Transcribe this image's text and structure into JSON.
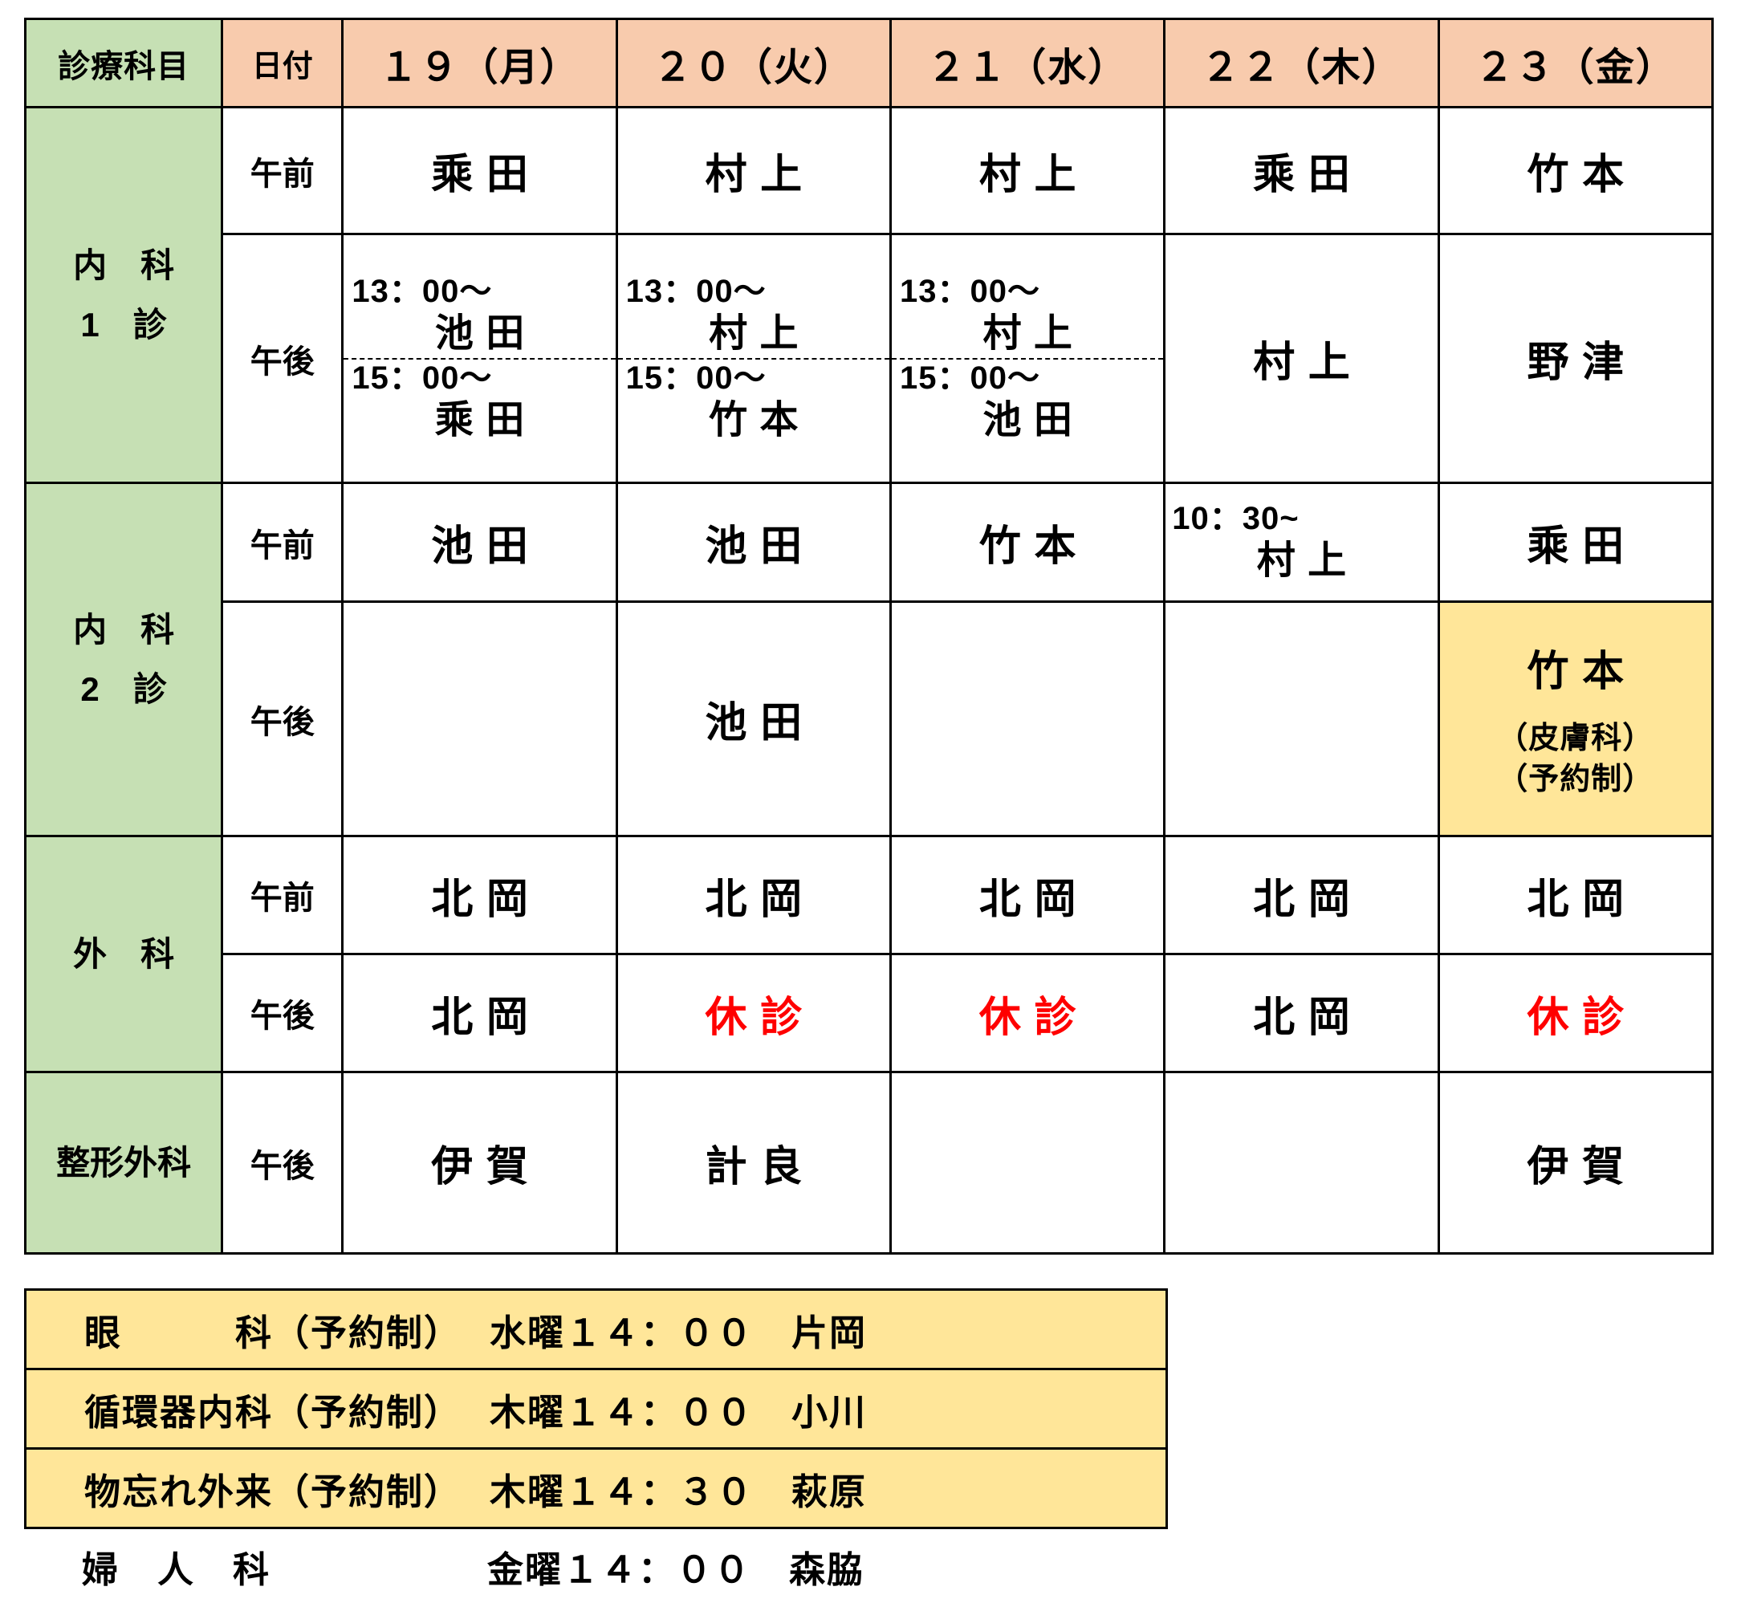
{
  "colors": {
    "green": "#c6e0b4",
    "orange": "#f8cbad",
    "yellow": "#ffe699",
    "red": "#ff0000",
    "border": "#000000"
  },
  "schedule": {
    "header": {
      "dept": "診療科目",
      "date": "日付",
      "days": [
        "１９（月）",
        "２０（火）",
        "２１（水）",
        "２２（木）",
        "２３（金）"
      ]
    },
    "naika1": {
      "label1": "内　科",
      "label2": "1　診",
      "am_label": "午前",
      "pm_label": "午後",
      "am": [
        "乘田",
        "村上",
        "村上",
        "乘田",
        "竹本"
      ],
      "pm_split": [
        {
          "t1": "13：00～",
          "n1": "池田",
          "t2": "15：00～",
          "n2": "乘田"
        },
        {
          "t1": "13：00～",
          "n1": "村上",
          "t2": "15：00～",
          "n2": "竹本"
        },
        {
          "t1": "13：00～",
          "n1": "村上",
          "t2": "15：00～",
          "n2": "池田"
        }
      ],
      "pm_thu": "村上",
      "pm_fri": "野津"
    },
    "naika2": {
      "label1": "内　科",
      "label2": "2　診",
      "am_label": "午前",
      "pm_label": "午後",
      "am": [
        "池田",
        "池田",
        "竹本"
      ],
      "am_thu": {
        "time": "10：30~",
        "name": "村上"
      },
      "am_fri": "乘田",
      "pm_tue": "池田",
      "pm_fri": {
        "name": "竹本",
        "sub1": "（皮膚科）",
        "sub2": "（予約制）"
      }
    },
    "geka": {
      "label": "外　科",
      "am_label": "午前",
      "pm_label": "午後",
      "am": [
        "北岡",
        "北岡",
        "北岡",
        "北岡",
        "北岡"
      ],
      "pm": [
        "北岡",
        "休診",
        "休診",
        "北岡",
        "休診"
      ]
    },
    "seikei": {
      "label": "整形外科",
      "pm_label": "午後",
      "pm_mon": "伊賀",
      "pm_tue": "計良",
      "pm_fri": "伊賀"
    }
  },
  "notes": {
    "rows": [
      {
        "dept": "眼　　　科（予約制）",
        "sched": "水曜１４：００　片岡"
      },
      {
        "dept": "循環器内科（予約制）",
        "sched": "木曜１４：００　小川"
      },
      {
        "dept": "物忘れ外来（予約制）",
        "sched": "木曜１４：３０　萩原"
      },
      {
        "dept": "婦　人　科",
        "sched": "金曜１４：００　森脇"
      }
    ]
  }
}
